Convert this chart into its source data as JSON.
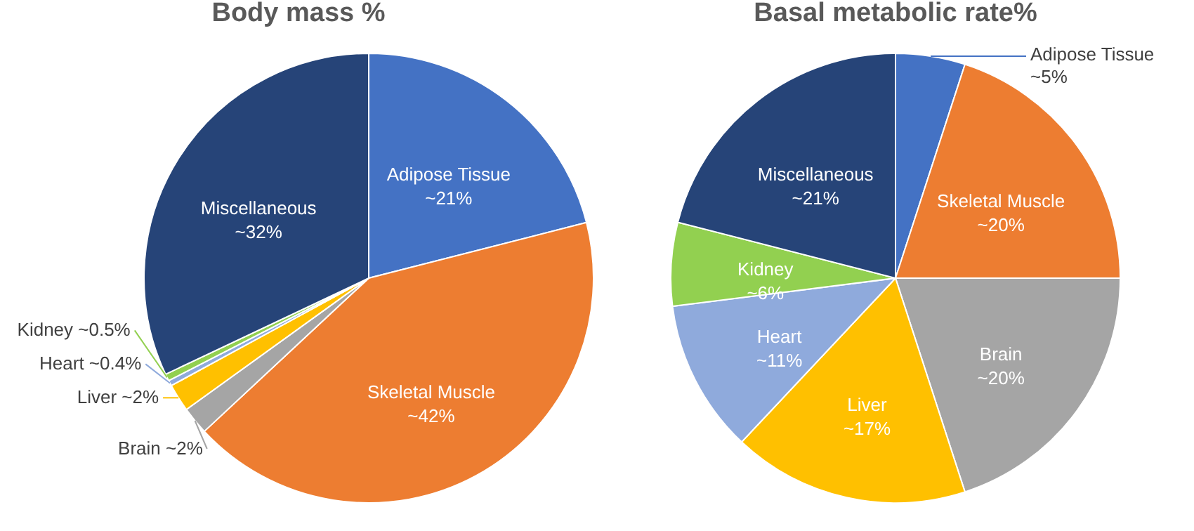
{
  "chart_data": [
    {
      "type": "pie",
      "title": "Body mass %",
      "categories": [
        "Adipose Tissue",
        "Skeletal Muscle",
        "Brain",
        "Liver",
        "Heart",
        "Kidney",
        "Miscellaneous"
      ],
      "values": [
        21,
        42,
        2,
        2,
        0.4,
        0.5,
        32
      ],
      "value_labels": [
        "~21%",
        "~42%",
        "~2%",
        "~2%",
        "~0.4%",
        "~0.5%",
        "~32%"
      ],
      "colors": [
        "#4472c4",
        "#ed7d31",
        "#a5a5a5",
        "#ffc000",
        "#8faadc",
        "#92d050",
        "#264478"
      ]
    },
    {
      "type": "pie",
      "title": "Basal metabolic rate%",
      "categories": [
        "Adipose Tissue",
        "Skeletal Muscle",
        "Brain",
        "Liver",
        "Heart",
        "Kidney",
        "Miscellaneous"
      ],
      "values": [
        5,
        20,
        20,
        17,
        11,
        6,
        21
      ],
      "value_labels": [
        "~5%",
        "~20%",
        "~20%",
        "~17%",
        "~11%",
        "~6%",
        "~21%"
      ],
      "colors": [
        "#4472c4",
        "#ed7d31",
        "#a5a5a5",
        "#ffc000",
        "#8faadc",
        "#92d050",
        "#264478"
      ]
    }
  ]
}
